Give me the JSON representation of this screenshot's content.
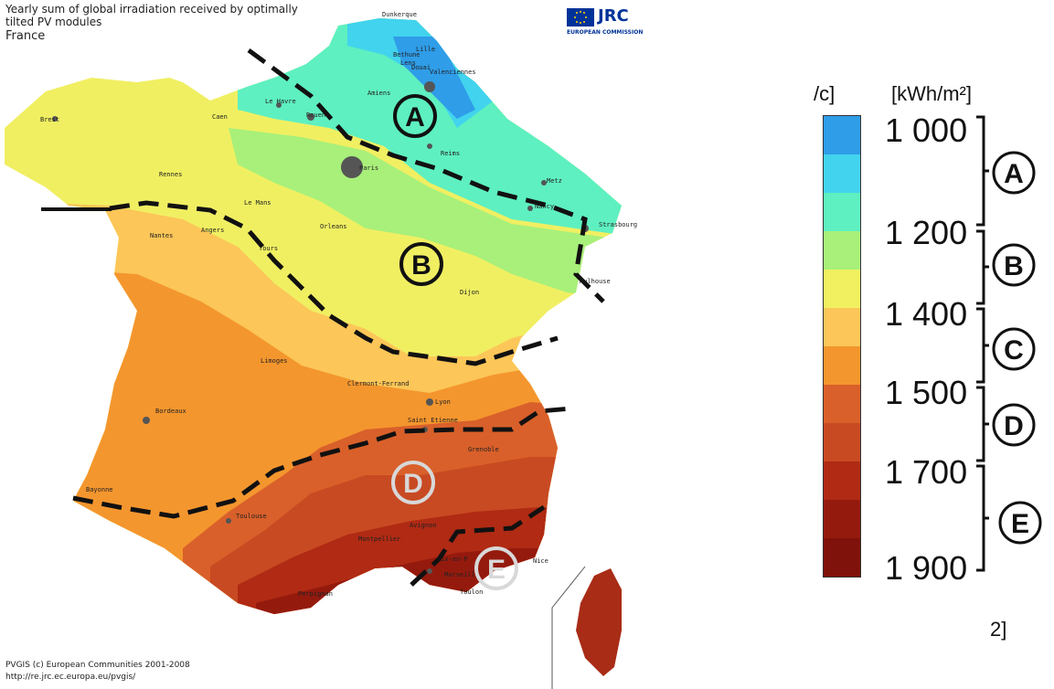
{
  "header": {
    "title_line1": "Yearly sum of global irradiation received by optimally",
    "title_line2": "tilted PV modules",
    "country": "France"
  },
  "logo": {
    "name": "JRC",
    "subtitle": "EUROPEAN COMMISSION"
  },
  "footer": {
    "copyright": "PVGIS (c) European Communities 2001-2008",
    "url": "http://re.jrc.ec.europa.eu/pvgis/"
  },
  "cities": [
    "Dunkerque",
    "Lille",
    "Bethune",
    "Lens",
    "Douai",
    "Valenciennes",
    "Amiens",
    "Le Havre",
    "Caen",
    "Rouen",
    "Brest",
    "Paris",
    "Reims",
    "Metz",
    "Nancy",
    "Strasbourg",
    "Rennes",
    "Le Mans",
    "Nantes",
    "Angers",
    "Tours",
    "Orleans",
    "Dijon",
    "Mulhouse",
    "Limoges",
    "Clermont-Ferrand",
    "Lyon",
    "Saint Etienne",
    "Bordeaux",
    "Grenoble",
    "Bayonne",
    "Toulouse",
    "Avignon",
    "Montpellier",
    "Aix-en-P",
    "Marseille",
    "Toulon",
    "Nice",
    "Perpignan"
  ],
  "zones": [
    {
      "label": "A",
      "range": "1 000 – 1 200"
    },
    {
      "label": "B",
      "range": "1 200 – 1 400"
    },
    {
      "label": "C",
      "range": "1 400 – 1 500"
    },
    {
      "label": "D",
      "range": "1 500 – 1 700"
    },
    {
      "label": "E",
      "range": "1 700 – 1 900"
    }
  ],
  "legend": {
    "unit_left_fragment": "/c]",
    "unit": "[kWh/m²]",
    "ticks": [
      "1 000",
      "1 200",
      "1 400",
      "1 500",
      "1 700",
      "1 900"
    ],
    "colors": [
      "#2f9de8",
      "#42d3ee",
      "#5ef0c0",
      "#a8f07a",
      "#f0f060",
      "#fcc658",
      "#f4962e",
      "#d9602a",
      "#c84a22",
      "#b02a14",
      "#951a0e",
      "#7f120a"
    ],
    "bottom_fragment": "2]"
  }
}
